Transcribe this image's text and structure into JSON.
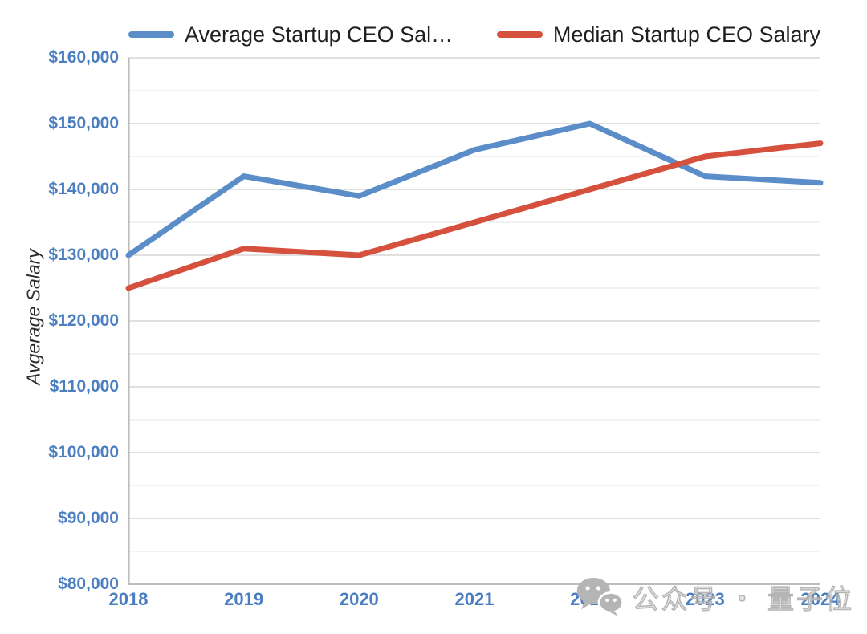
{
  "chart_data": {
    "type": "line",
    "title": "",
    "xlabel": "",
    "ylabel": "Avgerage Salary",
    "categories": [
      "2018",
      "2019",
      "2020",
      "2021",
      "2022",
      "2023",
      "2024"
    ],
    "series": [
      {
        "name": "Average Startup CEO Sal…",
        "color": "#5b8dc8",
        "values": [
          130000,
          142000,
          139000,
          146000,
          150000,
          142000,
          141000
        ]
      },
      {
        "name": "Median Startup CEO Salary",
        "color": "#d6503e",
        "values": [
          125000,
          131000,
          130000,
          135000,
          140000,
          145000,
          147000
        ]
      }
    ],
    "ylim": [
      80000,
      160000
    ],
    "y_major_step": 10000,
    "y_minor_step": 5000,
    "y_tick_labels": [
      "$80,000",
      "$90,000",
      "$100,000",
      "$110,000",
      "$120,000",
      "$130,000",
      "$140,000",
      "$150,000",
      "$160,000"
    ],
    "grid": true,
    "legend_position": "top"
  },
  "watermark": {
    "icon": "wechat-icon",
    "text": "公众号 ・ 量子位"
  },
  "colors": {
    "tick_label": "#4a7ec0",
    "legend_text": "#1f1f1f",
    "grid_major": "#d5d5d5",
    "grid_minor": "#ebebeb",
    "axis_line": "#bdbdbd",
    "watermark": "#b5b5b5"
  }
}
